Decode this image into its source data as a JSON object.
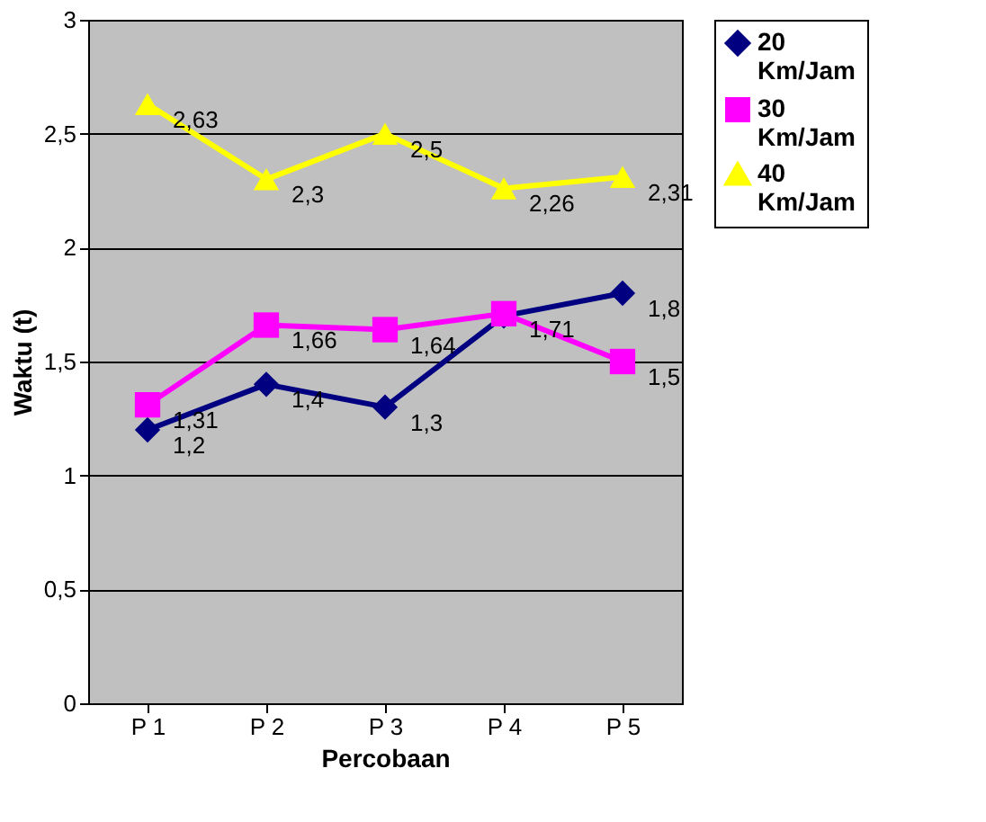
{
  "chart_data": {
    "type": "line",
    "xlabel": "Percobaan",
    "ylabel": "Waktu (t)",
    "categories": [
      "P 1",
      "P 2",
      "P 3",
      "P 4",
      "P 5"
    ],
    "series": [
      {
        "name": "20 Km/Jam",
        "color": "#000080",
        "marker": "diamond",
        "values": [
          1.2,
          1.4,
          1.3,
          1.7,
          1.8
        ],
        "value_labels": [
          "1,2",
          "1,4",
          "1,3",
          null,
          "1,8"
        ]
      },
      {
        "name": "30 Km/Jam",
        "color": "#ff00ff",
        "marker": "square",
        "values": [
          1.31,
          1.66,
          1.64,
          1.71,
          1.5
        ],
        "value_labels": [
          "1,31",
          "1,66",
          "1,64",
          "1,71",
          "1,5"
        ]
      },
      {
        "name": "40 Km/Jam",
        "color": "#ffff00",
        "marker": "triangle",
        "values": [
          2.63,
          2.3,
          2.5,
          2.26,
          2.31
        ],
        "value_labels": [
          "2,63",
          "2,3",
          "2,5",
          "2,26",
          "2,31"
        ]
      }
    ],
    "ylim": [
      0,
      3
    ],
    "yticks": [
      {
        "value": 0,
        "label": "0"
      },
      {
        "value": 0.5,
        "label": "0,5"
      },
      {
        "value": 1,
        "label": "1"
      },
      {
        "value": 1.5,
        "label": "1,5"
      },
      {
        "value": 2,
        "label": "2"
      },
      {
        "value": 2.5,
        "label": "2,5"
      },
      {
        "value": 3,
        "label": "3"
      }
    ],
    "grid": "y",
    "legend": "right",
    "line_style": "solid"
  }
}
